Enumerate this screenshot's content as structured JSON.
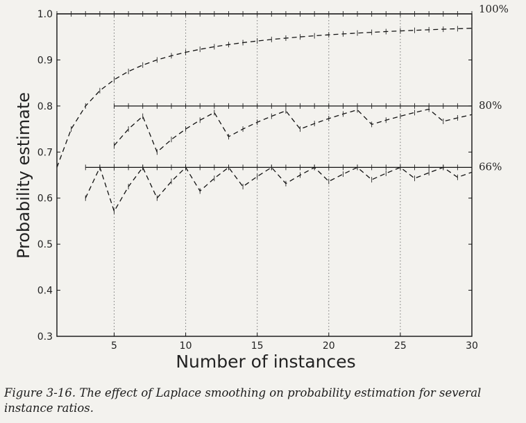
{
  "chart_data": {
    "type": "line",
    "xlabel": "Number of instances",
    "ylabel": "Probability estimate",
    "xlim": [
      1,
      30
    ],
    "ylim": [
      0.3,
      1.0
    ],
    "xticks": [
      5,
      10,
      15,
      20,
      25,
      30
    ],
    "yticks": [
      0.3,
      0.4,
      0.5,
      0.6,
      0.7,
      0.8,
      0.9,
      1.0
    ],
    "x_gridlines": [
      5,
      10,
      15,
      20,
      25
    ],
    "series": [
      {
        "name": "100% raw",
        "style": "solid",
        "ratio": 1.0,
        "x_start": 1,
        "x_end": 30,
        "label": "100%"
      },
      {
        "name": "100% Laplace",
        "style": "dashed",
        "ratio": 1.0,
        "x_start": 1,
        "x_end": 30
      },
      {
        "name": "80% raw",
        "style": "solid",
        "ratio": 0.8,
        "x_start": 5,
        "x_end": 30,
        "label": "80%"
      },
      {
        "name": "80% Laplace",
        "style": "dashed",
        "ratio": 0.8,
        "x_start": 5,
        "x_end": 30
      },
      {
        "name": "66% raw",
        "style": "solid",
        "ratio": 0.6667,
        "x_start": 3,
        "x_end": 30,
        "label": "66%"
      },
      {
        "name": "66% Laplace",
        "style": "dashed",
        "ratio": 0.6667,
        "x_start": 3,
        "x_end": 30
      }
    ],
    "caption": "Figure 3-16. The effect of Laplace smoothing on probability estimation for several instance ratios."
  }
}
